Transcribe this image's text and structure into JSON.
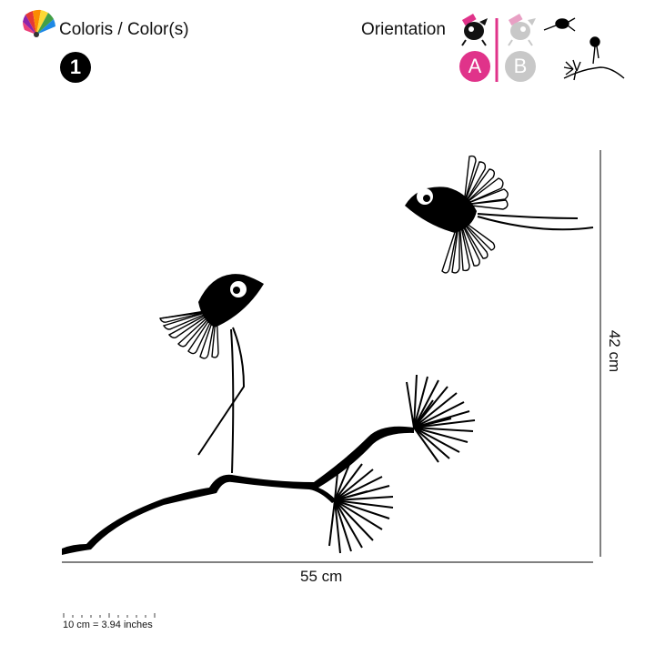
{
  "header": {
    "colors_label": "Coloris / Color(s)",
    "color_count": "1",
    "orientation_label": "Orientation",
    "orientation_options": [
      {
        "label": "A",
        "selected": true
      },
      {
        "label": "B",
        "selected": false
      }
    ]
  },
  "dimensions": {
    "width": "55 cm",
    "height": "42 cm"
  },
  "scale": {
    "text": "10 cm = 3.94 inches"
  },
  "colors": {
    "accent": "#e0338a",
    "inactive": "#c8c8c8",
    "ink": "#000000"
  },
  "icons": {
    "palette": "color-fan-icon",
    "orientation_a": "bird-mirror-a-icon",
    "orientation_b": "bird-mirror-b-icon"
  }
}
